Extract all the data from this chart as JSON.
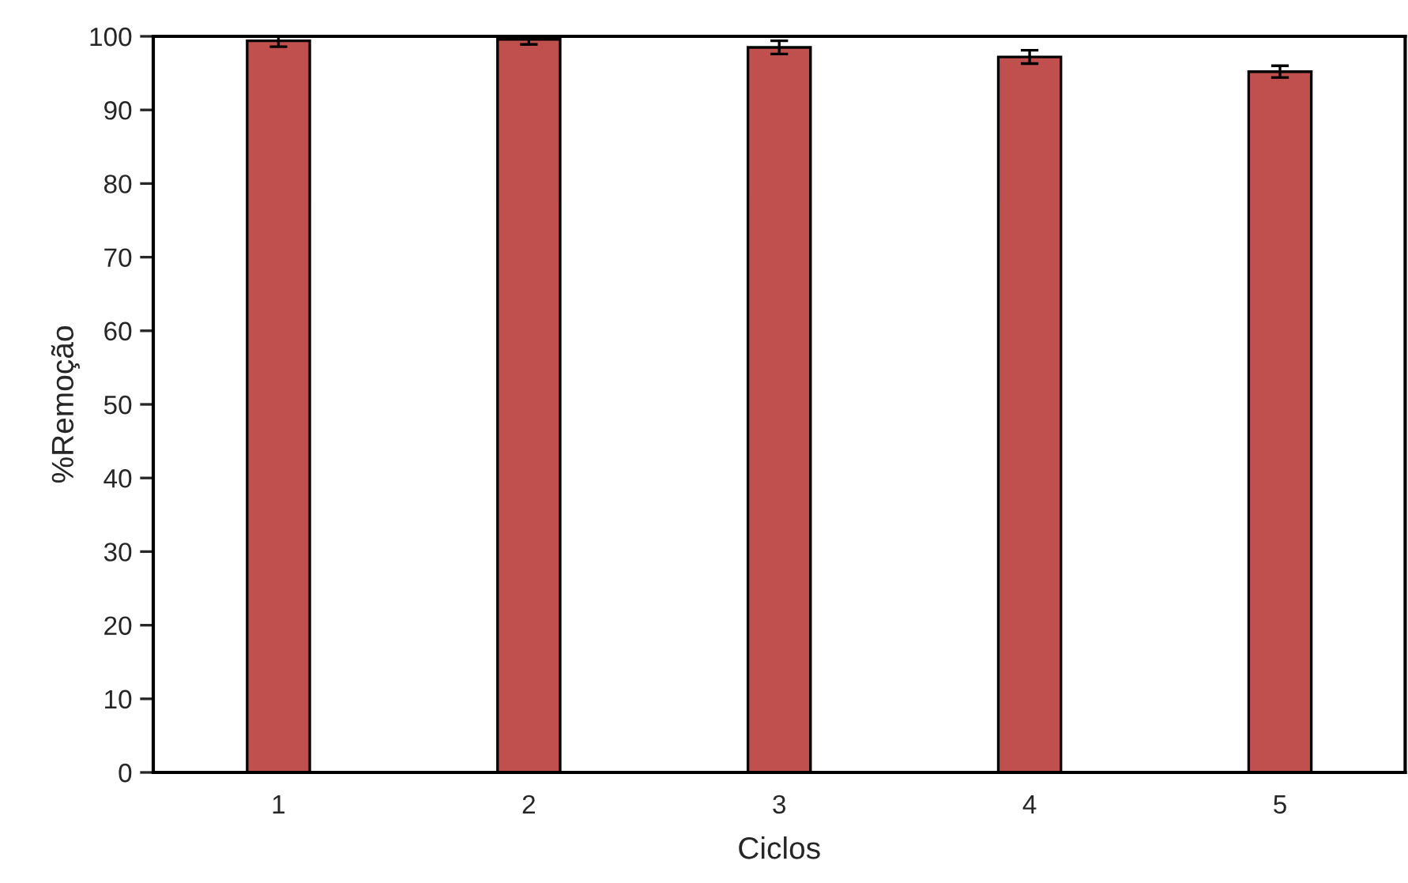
{
  "chart_data": {
    "type": "bar",
    "xlabel": "Ciclos",
    "ylabel": "%Remoção",
    "categories": [
      "1",
      "2",
      "3",
      "4",
      "5"
    ],
    "values": [
      99.4,
      99.6,
      98.5,
      97.2,
      95.2
    ],
    "errors": [
      0.8,
      0.7,
      0.9,
      0.9,
      0.8
    ],
    "color": "#c0504d",
    "ylim": [
      0,
      100
    ],
    "yticks": [
      0,
      10,
      20,
      30,
      40,
      50,
      60,
      70,
      80,
      90,
      100
    ],
    "grid": false,
    "legend": false
  }
}
